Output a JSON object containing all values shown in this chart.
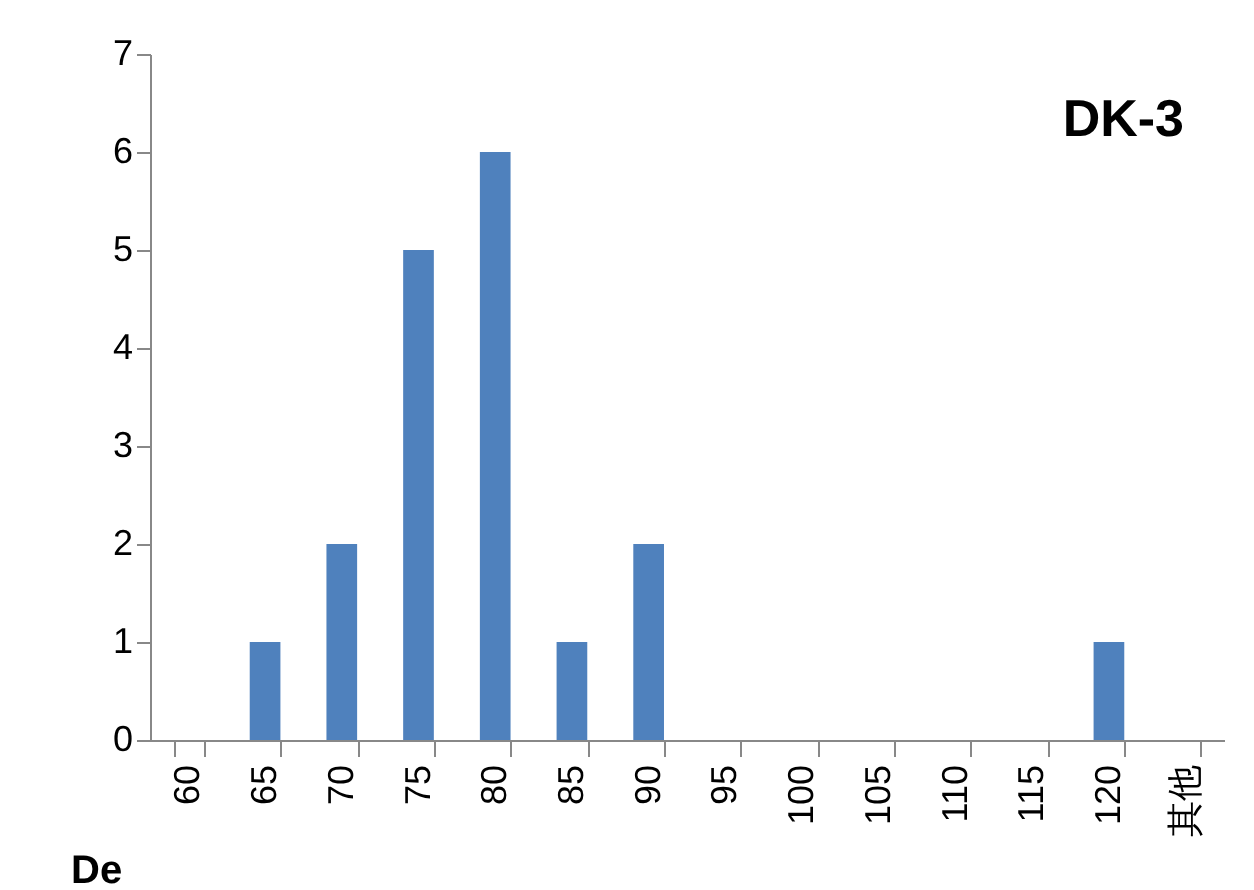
{
  "chart_data": {
    "type": "bar",
    "title": "DK-3",
    "xlabel": "De",
    "categories": [
      "60",
      "65",
      "70",
      "75",
      "80",
      "85",
      "90",
      "95",
      "100",
      "105",
      "110",
      "115",
      "120",
      "其他"
    ],
    "values": [
      0,
      1,
      2,
      5,
      6,
      1,
      2,
      0,
      0,
      0,
      0,
      0,
      1,
      0
    ],
    "color": "#4f81bd",
    "ylim": [
      0,
      7
    ],
    "yticks": [
      0,
      1,
      2,
      3,
      4,
      5,
      6,
      7
    ],
    "grid": false
  }
}
